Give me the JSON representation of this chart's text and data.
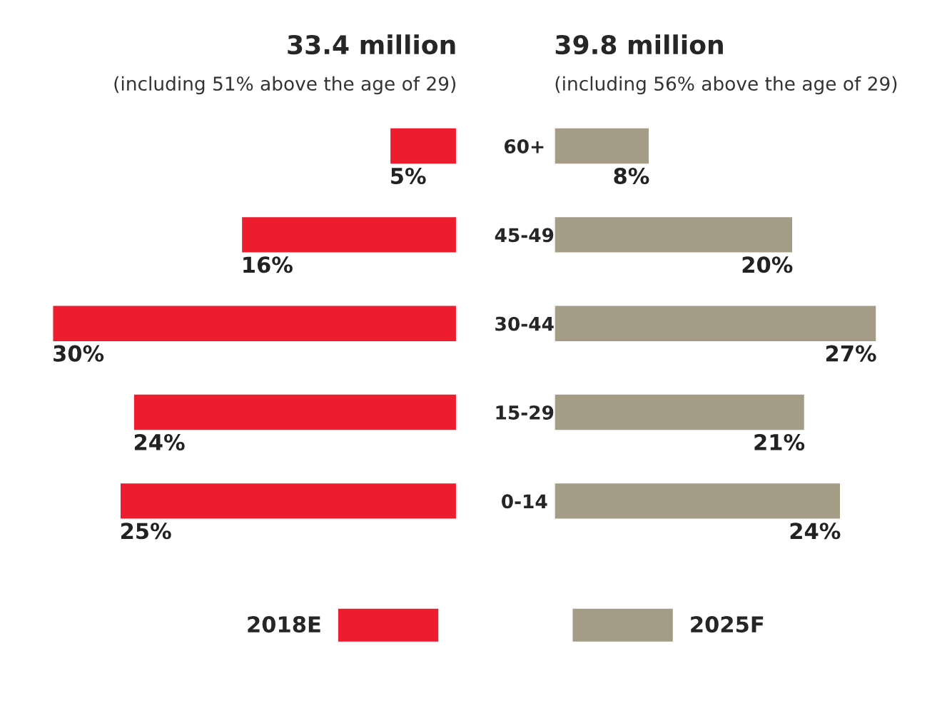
{
  "chart_data": [
    {
      "type": "bar",
      "orientation": "horizontal",
      "title": "33.4 million",
      "subtitle": "(including 51% above the age of 29)",
      "categories": [
        "60+",
        "45-49",
        "30-44",
        "15-29",
        "0-14"
      ],
      "tick_labels": "y",
      "legend": "bottom",
      "series": [
        {
          "name": "2018E",
          "color": "#ed1c2e",
          "values": [
            5,
            16,
            30,
            24,
            25
          ],
          "value_labels": [
            "5%",
            "16%",
            "30%",
            "24%",
            "25%"
          ]
        }
      ]
    },
    {
      "type": "bar",
      "orientation": "horizontal",
      "title": "39.8 million",
      "subtitle": "(including 56% above the age of 29)",
      "categories": [
        null,
        null,
        null,
        null,
        null
      ],
      "tick_labels": false,
      "legend": "bottom",
      "series": [
        {
          "name": "2025F",
          "color": "#a59c87",
          "values": [
            8,
            20,
            27,
            21,
            24
          ],
          "value_labels": [
            "8%",
            "20%",
            "27%",
            "21%",
            "24%"
          ]
        }
      ]
    }
  ]
}
